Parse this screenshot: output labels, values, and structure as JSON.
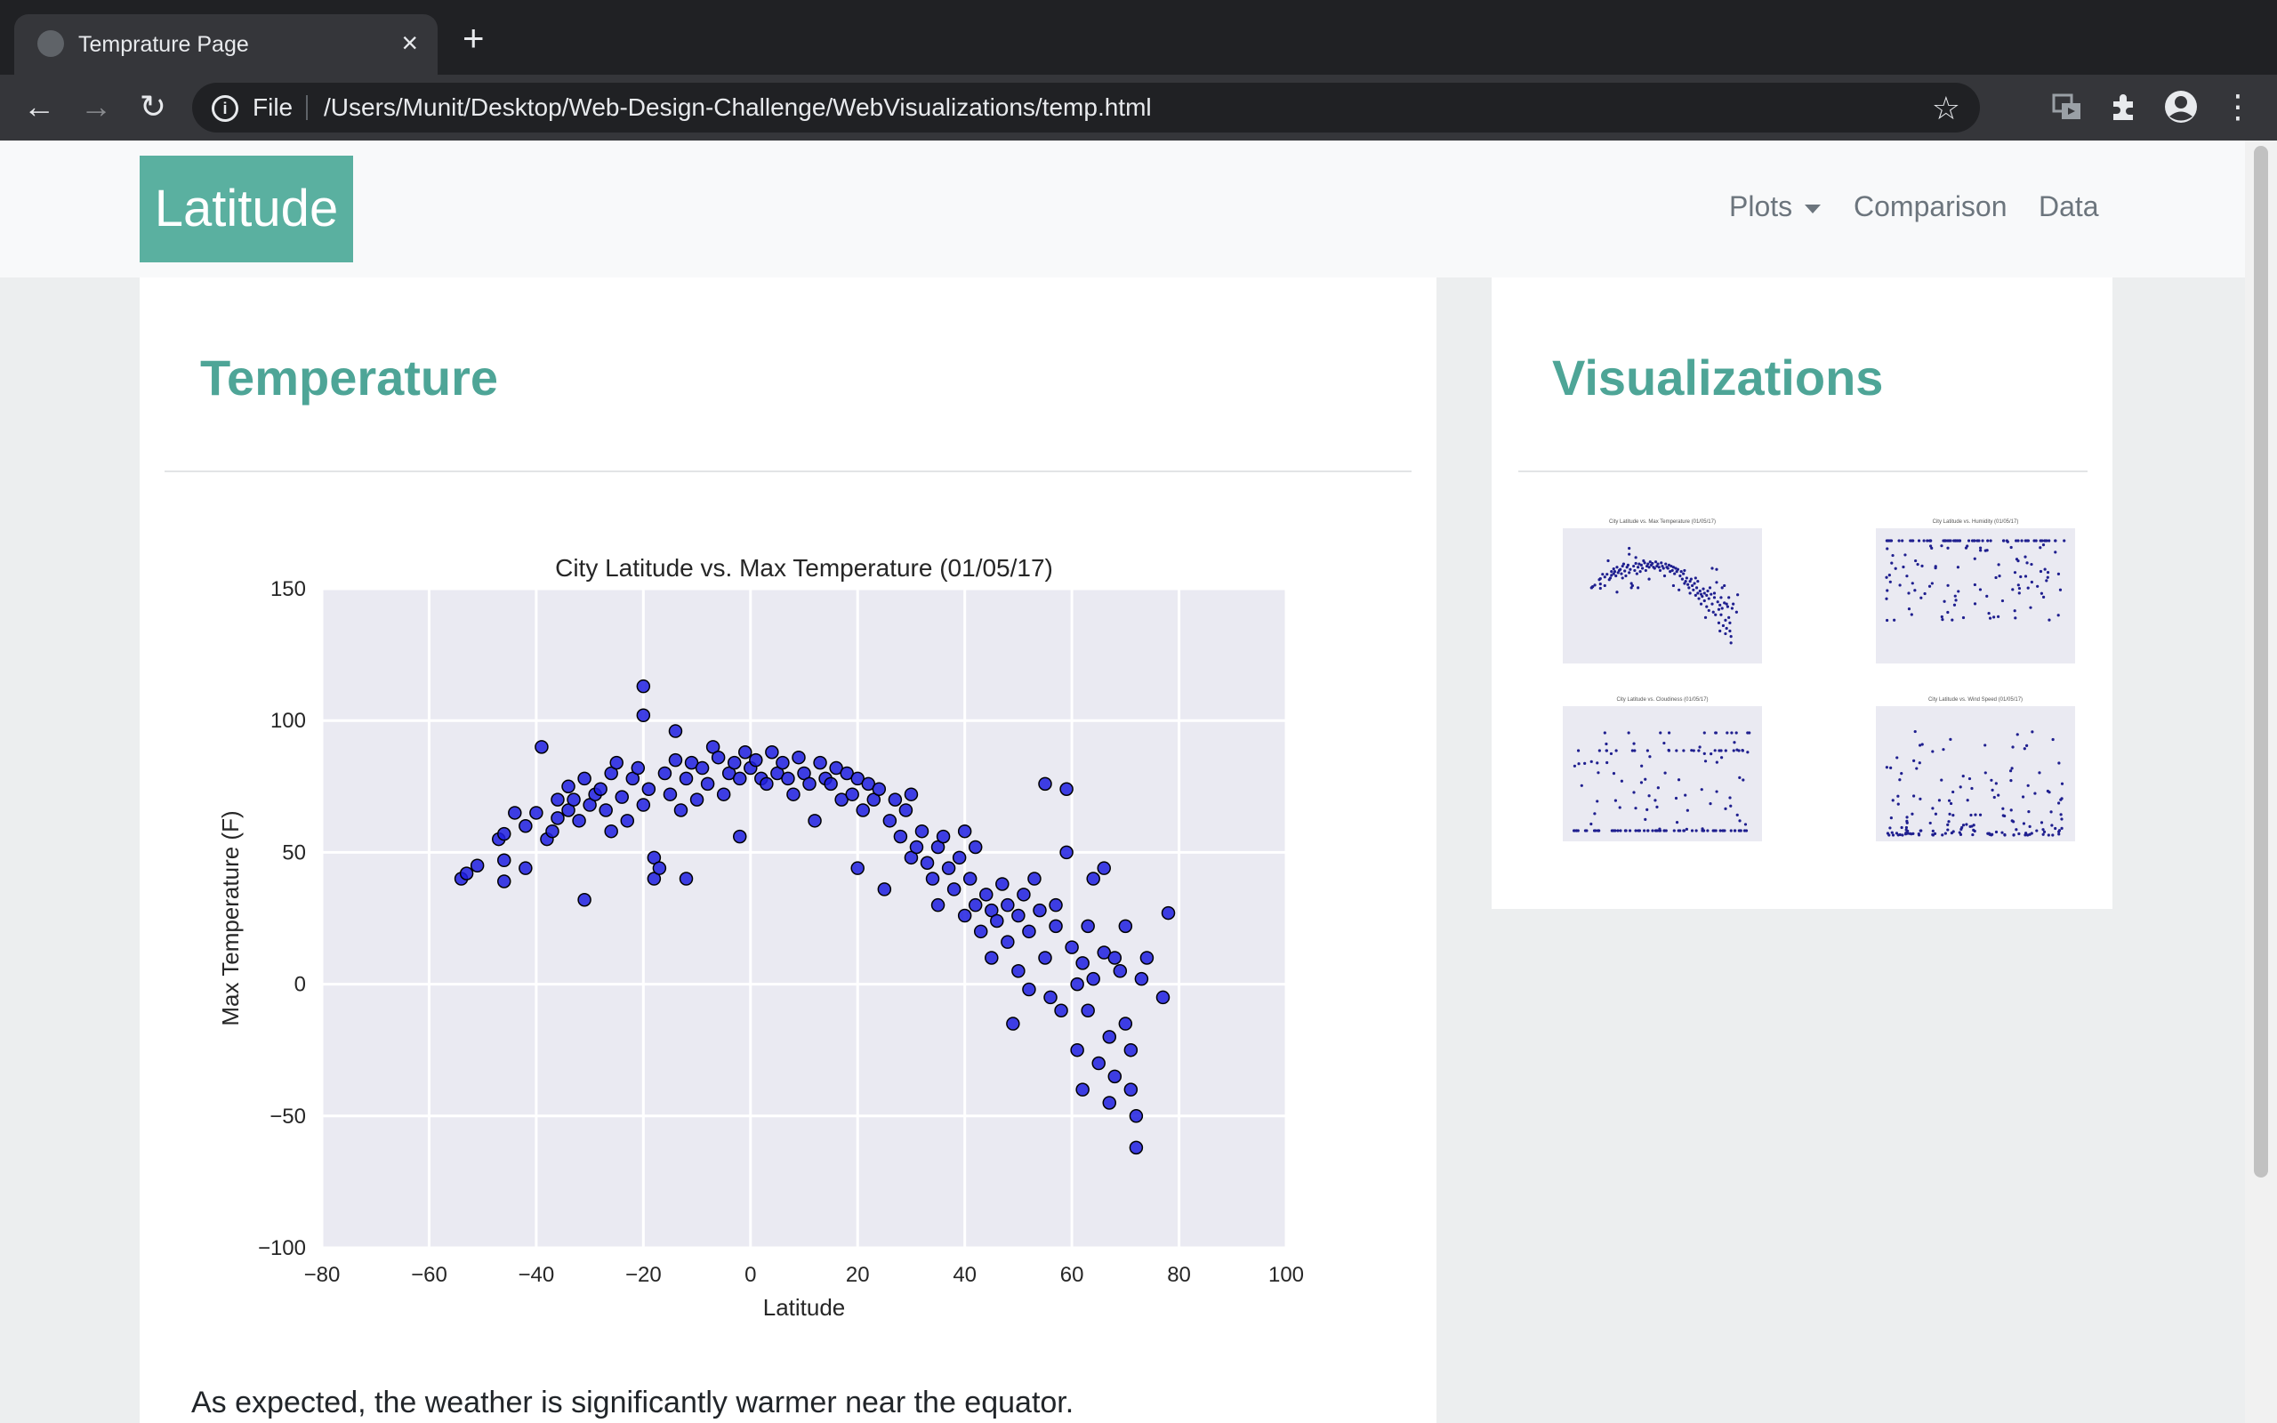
{
  "browser": {
    "tab_title": "Temprature Page",
    "close_glyph": "×",
    "new_tab_glyph": "+",
    "back_glyph": "←",
    "forward_glyph": "→",
    "reload_glyph": "↻",
    "info_glyph": "i",
    "scheme": "File",
    "url": "/Users/Munit/Desktop/Web-Design-Challenge/WebVisualizations/temp.html",
    "star_glyph": "☆",
    "menu_glyph": "⋮"
  },
  "navbar": {
    "brand": "Latitude",
    "links": {
      "plots": "Plots",
      "comparison": "Comparison",
      "data": "Data"
    }
  },
  "main": {
    "heading": "Temperature",
    "description": "As expected, the weather is significantly warmer near the equator."
  },
  "sidebar": {
    "heading": "Visualizations",
    "thumbnails": [
      {
        "title": "City Latitude vs. Max Temperature (01/05/17)"
      },
      {
        "title": "City Latitude vs. Humidity (01/05/17)"
      },
      {
        "title": "City Latitude vs. Cloudiness (01/05/17)"
      },
      {
        "title": "City Latitude vs. Wind Speed (01/05/17)"
      }
    ]
  },
  "colors": {
    "accent": "#4ea597",
    "brand_bg": "#5ab0a0",
    "point_fill": "#1f1fe0",
    "plot_bg": "#eaeaf2"
  },
  "chart_data": {
    "type": "scatter",
    "title": "City Latitude vs. Max Temperature (01/05/17)",
    "xlabel": "Latitude",
    "ylabel": "Max Temperature (F)",
    "xlim": [
      -80,
      100
    ],
    "ylim": [
      -100,
      150
    ],
    "xticks": [
      -80,
      -60,
      -40,
      -20,
      0,
      20,
      40,
      60,
      80,
      100
    ],
    "yticks": [
      -100,
      -50,
      0,
      50,
      100,
      150
    ],
    "grid": true,
    "points": [
      [
        -54,
        40
      ],
      [
        -53,
        42
      ],
      [
        -51,
        45
      ],
      [
        -47,
        55
      ],
      [
        -46,
        57
      ],
      [
        -46,
        47
      ],
      [
        -46,
        39
      ],
      [
        -44,
        65
      ],
      [
        -42,
        44
      ],
      [
        -42,
        60
      ],
      [
        -40,
        65
      ],
      [
        -39,
        90
      ],
      [
        -38,
        55
      ],
      [
        -37,
        58
      ],
      [
        -36,
        70
      ],
      [
        -36,
        63
      ],
      [
        -34,
        75
      ],
      [
        -34,
        66
      ],
      [
        -33,
        70
      ],
      [
        -32,
        62
      ],
      [
        -31,
        78
      ],
      [
        -31,
        32
      ],
      [
        -30,
        68
      ],
      [
        -29,
        72
      ],
      [
        -28,
        74
      ],
      [
        -27,
        66
      ],
      [
        -26,
        80
      ],
      [
        -26,
        58
      ],
      [
        -25,
        84
      ],
      [
        -24,
        71
      ],
      [
        -23,
        62
      ],
      [
        -22,
        78
      ],
      [
        -21,
        82
      ],
      [
        -20,
        68
      ],
      [
        -20,
        113
      ],
      [
        -20,
        102
      ],
      [
        -19,
        74
      ],
      [
        -18,
        48
      ],
      [
        -18,
        40
      ],
      [
        -17,
        44
      ],
      [
        -16,
        80
      ],
      [
        -15,
        72
      ],
      [
        -14,
        85
      ],
      [
        -14,
        96
      ],
      [
        -13,
        66
      ],
      [
        -12,
        78
      ],
      [
        -12,
        40
      ],
      [
        -11,
        84
      ],
      [
        -10,
        70
      ],
      [
        -9,
        82
      ],
      [
        -8,
        76
      ],
      [
        -7,
        90
      ],
      [
        -6,
        86
      ],
      [
        -5,
        72
      ],
      [
        -4,
        80
      ],
      [
        -3,
        84
      ],
      [
        -2,
        78
      ],
      [
        -2,
        56
      ],
      [
        -1,
        88
      ],
      [
        0,
        82
      ],
      [
        1,
        85
      ],
      [
        2,
        78
      ],
      [
        3,
        76
      ],
      [
        4,
        88
      ],
      [
        5,
        80
      ],
      [
        6,
        84
      ],
      [
        7,
        78
      ],
      [
        8,
        72
      ],
      [
        9,
        86
      ],
      [
        10,
        80
      ],
      [
        11,
        76
      ],
      [
        12,
        62
      ],
      [
        13,
        84
      ],
      [
        14,
        78
      ],
      [
        15,
        76
      ],
      [
        16,
        82
      ],
      [
        17,
        70
      ],
      [
        18,
        80
      ],
      [
        19,
        72
      ],
      [
        20,
        78
      ],
      [
        20,
        44
      ],
      [
        21,
        66
      ],
      [
        22,
        76
      ],
      [
        23,
        70
      ],
      [
        24,
        74
      ],
      [
        25,
        36
      ],
      [
        26,
        62
      ],
      [
        27,
        70
      ],
      [
        28,
        56
      ],
      [
        29,
        66
      ],
      [
        30,
        72
      ],
      [
        30,
        48
      ],
      [
        31,
        52
      ],
      [
        32,
        58
      ],
      [
        33,
        46
      ],
      [
        34,
        40
      ],
      [
        35,
        52
      ],
      [
        35,
        30
      ],
      [
        36,
        56
      ],
      [
        37,
        44
      ],
      [
        38,
        36
      ],
      [
        39,
        48
      ],
      [
        40,
        26
      ],
      [
        40,
        58
      ],
      [
        41,
        40
      ],
      [
        42,
        30
      ],
      [
        42,
        52
      ],
      [
        43,
        20
      ],
      [
        44,
        34
      ],
      [
        45,
        28
      ],
      [
        45,
        10
      ],
      [
        46,
        24
      ],
      [
        47,
        38
      ],
      [
        48,
        16
      ],
      [
        48,
        30
      ],
      [
        49,
        -15
      ],
      [
        50,
        26
      ],
      [
        50,
        5
      ],
      [
        51,
        34
      ],
      [
        52,
        -2
      ],
      [
        52,
        20
      ],
      [
        53,
        40
      ],
      [
        54,
        28
      ],
      [
        55,
        76
      ],
      [
        55,
        10
      ],
      [
        56,
        -5
      ],
      [
        57,
        22
      ],
      [
        57,
        30
      ],
      [
        58,
        -10
      ],
      [
        59,
        50
      ],
      [
        59,
        74
      ],
      [
        60,
        14
      ],
      [
        61,
        0
      ],
      [
        61,
        -25
      ],
      [
        62,
        -40
      ],
      [
        62,
        8
      ],
      [
        63,
        22
      ],
      [
        63,
        -10
      ],
      [
        64,
        2
      ],
      [
        64,
        40
      ],
      [
        65,
        -30
      ],
      [
        66,
        44
      ],
      [
        66,
        12
      ],
      [
        67,
        -45
      ],
      [
        67,
        -20
      ],
      [
        68,
        10
      ],
      [
        68,
        -35
      ],
      [
        69,
        5
      ],
      [
        70,
        -15
      ],
      [
        70,
        22
      ],
      [
        71,
        -40
      ],
      [
        71,
        -25
      ],
      [
        72,
        -50
      ],
      [
        72,
        -62
      ],
      [
        73,
        2
      ],
      [
        74,
        10
      ],
      [
        77,
        -5
      ],
      [
        78,
        27
      ]
    ]
  }
}
